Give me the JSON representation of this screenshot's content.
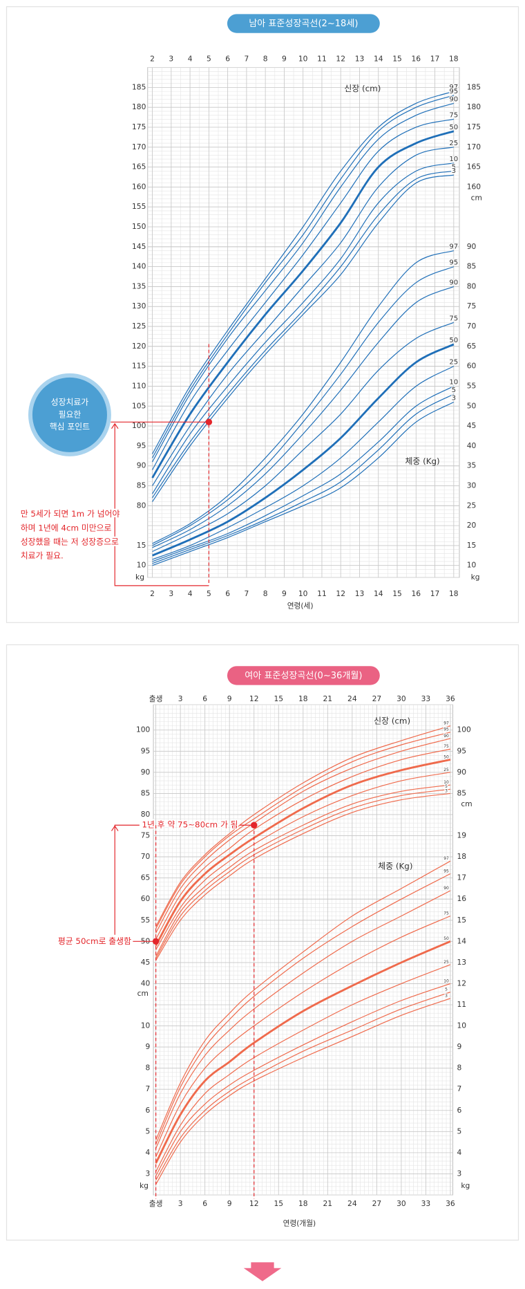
{
  "chart_data": [
    {
      "type": "line",
      "title": "남아 표준성장곡선(2~18세)",
      "x_label": "연령(세)",
      "height_label": "신장 (cm)",
      "weight_label": "체중 (Kg)",
      "y_unit": "cm",
      "y2_unit": "kg",
      "color": "#1f6fb8",
      "grid": true,
      "xlim": [
        1.75,
        18.3
      ],
      "xticks": [
        2,
        3,
        4,
        5,
        6,
        7,
        8,
        9,
        10,
        11,
        12,
        13,
        14,
        15,
        16,
        17,
        18
      ],
      "ylim": [
        62,
        190
      ],
      "yticks": [
        80,
        85,
        90,
        95,
        100,
        105,
        110,
        115,
        120,
        125,
        130,
        135,
        140,
        145,
        150,
        155,
        160,
        165,
        170,
        175,
        180,
        185
      ],
      "yticks_right": [
        160,
        165,
        170,
        175,
        180,
        185
      ],
      "y2lim": [
        7,
        135
      ],
      "y2ticks": [
        10,
        15,
        20,
        25,
        30,
        35,
        40,
        45,
        50,
        55,
        60,
        65,
        70,
        75,
        80,
        85,
        90
      ],
      "y2ticks_left": [
        10,
        15
      ],
      "x": [
        2,
        4,
        6,
        8,
        10,
        12,
        14,
        16,
        18
      ],
      "series": [
        {
          "name": "97",
          "values": [
            93,
            110,
            124,
            137,
            150,
            164,
            175,
            181,
            184
          ]
        },
        {
          "name": "95",
          "values": [
            92,
            109,
            123,
            136,
            148,
            162,
            174,
            180,
            183
          ]
        },
        {
          "name": "90",
          "values": [
            91,
            108,
            122,
            134,
            146,
            160,
            172,
            178,
            181
          ]
        },
        {
          "name": "75",
          "values": [
            89,
            106,
            119,
            131,
            143,
            156,
            169,
            175,
            177
          ]
        },
        {
          "name": "50",
          "bold": true,
          "values": [
            87,
            103,
            116,
            128,
            139,
            151,
            165,
            171,
            174
          ]
        },
        {
          "name": "25",
          "values": [
            85,
            100,
            113,
            124,
            135,
            146,
            160,
            168,
            170
          ]
        },
        {
          "name": "10",
          "values": [
            83,
            98,
            110,
            121,
            131,
            142,
            156,
            164,
            166
          ]
        },
        {
          "name": "5",
          "values": [
            82,
            96,
            108,
            119,
            129,
            140,
            153,
            162,
            164
          ]
        },
        {
          "name": "3",
          "values": [
            81,
            95,
            107,
            118,
            128,
            138,
            151,
            161,
            163
          ]
        },
        {
          "name": "97",
          "axis": "y2",
          "values": [
            15.5,
            20.5,
            27.5,
            37,
            48,
            61,
            75,
            86,
            89
          ]
        },
        {
          "name": "95",
          "axis": "y2",
          "values": [
            15,
            20,
            26.5,
            35,
            46,
            58,
            71,
            81,
            85
          ]
        },
        {
          "name": "90",
          "axis": "y2",
          "values": [
            14.5,
            19,
            25,
            33,
            43,
            54,
            66,
            76,
            80
          ]
        },
        {
          "name": "75",
          "axis": "y2",
          "values": [
            13.5,
            18,
            23,
            30,
            39,
            48,
            59,
            67,
            71
          ]
        },
        {
          "name": "50",
          "axis": "y2",
          "bold": true,
          "values": [
            12.5,
            16.5,
            21,
            27,
            34,
            42,
            52,
            61,
            65.5
          ]
        },
        {
          "name": "25",
          "axis": "y2",
          "values": [
            11.5,
            15,
            19.5,
            24.5,
            30,
            37,
            46,
            55,
            60
          ]
        },
        {
          "name": "10",
          "axis": "y2",
          "values": [
            11,
            14.5,
            18,
            22.5,
            27.5,
            33,
            41,
            50,
            55
          ]
        },
        {
          "name": "5",
          "axis": "y2",
          "values": [
            10.5,
            14,
            17.5,
            21.5,
            26,
            31,
            39,
            48,
            53
          ]
        },
        {
          "name": "3",
          "axis": "y2",
          "values": [
            10,
            13.5,
            17,
            21,
            25,
            29.5,
            37,
            46,
            51
          ]
        }
      ],
      "markers": [
        {
          "x": 5,
          "y": 101
        }
      ],
      "callout": [
        "성장치료가",
        "필요한",
        "핵심 포인트"
      ],
      "note": [
        "만 5세가 되면 1m 가 넘어야",
        "하며 1년에 4cm 미만으로",
        "성장했을 때는 저 성장증으로",
        "치료가 필요."
      ]
    },
    {
      "type": "line",
      "title": "여아 표준성장곡선(0~36개월)",
      "x_label": "연령(개월)",
      "height_label": "신장 (cm)",
      "weight_label": "체중 (Kg)",
      "y_unit": "cm",
      "y2_unit": "kg",
      "color": "#ef6a4c",
      "grid": true,
      "xlim": [
        -0.3,
        36.3
      ],
      "xticks": [
        {
          "value": 0,
          "label": "출생"
        },
        3,
        6,
        9,
        12,
        15,
        18,
        21,
        24,
        27,
        30,
        33,
        36
      ],
      "ylim": [
        -10,
        106
      ],
      "yticks": [
        40,
        45,
        50,
        55,
        60,
        65,
        70,
        75,
        80,
        85,
        90,
        95,
        100
      ],
      "yticks_right": [
        85,
        90,
        95,
        100
      ],
      "y2lim": [
        2,
        25.2
      ],
      "y2ticks": [
        3,
        4,
        5,
        6,
        7,
        8,
        9,
        10,
        11,
        12,
        13,
        14,
        15,
        16,
        17,
        18,
        19
      ],
      "y2ticks_left": [
        3,
        4,
        5,
        6,
        7,
        8,
        9,
        10
      ],
      "x": [
        0,
        3,
        6,
        9,
        12,
        18,
        24,
        30,
        36
      ],
      "series": [
        {
          "name": "97",
          "values": [
            53.5,
            64,
            70.5,
            75.5,
            80,
            87.5,
            93.5,
            97.5,
            101
          ]
        },
        {
          "name": "95",
          "values": [
            53,
            63.5,
            70,
            75,
            79,
            86.5,
            92.5,
            96.5,
            99.5
          ]
        },
        {
          "name": "90",
          "values": [
            52,
            62.5,
            69,
            74,
            78,
            85.5,
            91,
            95,
            98
          ]
        },
        {
          "name": "75",
          "values": [
            50.5,
            61,
            67.5,
            72,
            76.5,
            83.5,
            89,
            93,
            95.5
          ]
        },
        {
          "name": "50",
          "bold": true,
          "values": [
            49,
            59.5,
            66,
            70.5,
            74.5,
            81.5,
            87,
            90.5,
            93
          ]
        },
        {
          "name": "25",
          "values": [
            48,
            58,
            64.5,
            69,
            73,
            79.5,
            84.5,
            88,
            90
          ]
        },
        {
          "name": "10",
          "values": [
            46.5,
            57,
            63,
            67.5,
            71.5,
            77.5,
            82.5,
            85.5,
            87
          ]
        },
        {
          "name": "5",
          "values": [
            46,
            56,
            62,
            66.5,
            70.5,
            76.5,
            81.5,
            84.5,
            86
          ]
        },
        {
          "name": "3",
          "values": [
            45.5,
            55,
            61,
            65.5,
            69.5,
            75.5,
            80.5,
            83.5,
            85
          ]
        },
        {
          "name": "97",
          "axis": "y2",
          "values": [
            4.6,
            7.3,
            9.3,
            10.6,
            11.7,
            13.5,
            15.2,
            16.5,
            17.8
          ]
        },
        {
          "name": "95",
          "axis": "y2",
          "values": [
            4.4,
            7.1,
            9.0,
            10.3,
            11.4,
            13.2,
            14.7,
            16.0,
            17.2
          ]
        },
        {
          "name": "90",
          "axis": "y2",
          "values": [
            4.2,
            6.8,
            8.6,
            9.8,
            10.8,
            12.5,
            14.0,
            15.2,
            16.4
          ]
        },
        {
          "name": "75",
          "axis": "y2",
          "values": [
            3.8,
            6.3,
            8.0,
            9.1,
            10.0,
            11.6,
            13.0,
            14.2,
            15.2
          ]
        },
        {
          "name": "50",
          "axis": "y2",
          "bold": true,
          "values": [
            3.5,
            5.8,
            7.4,
            8.3,
            9.2,
            10.7,
            11.9,
            13.0,
            14.0
          ]
        },
        {
          "name": "25",
          "axis": "y2",
          "values": [
            3.1,
            5.3,
            6.8,
            7.7,
            8.5,
            9.8,
            11.0,
            12.0,
            12.9
          ]
        },
        {
          "name": "10",
          "axis": "y2",
          "values": [
            2.9,
            5.0,
            6.3,
            7.2,
            7.9,
            9.1,
            10.2,
            11.2,
            12.0
          ]
        },
        {
          "name": "5",
          "axis": "y2",
          "values": [
            2.7,
            4.7,
            6.0,
            6.9,
            7.6,
            8.8,
            9.8,
            10.8,
            11.6
          ]
        },
        {
          "name": "3",
          "axis": "y2",
          "values": [
            2.5,
            4.5,
            5.8,
            6.7,
            7.4,
            8.5,
            9.5,
            10.5,
            11.3
          ]
        }
      ],
      "markers": [
        {
          "x": 0,
          "y": 50,
          "label": "평균 50cm로 출생함"
        },
        {
          "x": 12,
          "y": 77.5,
          "label": "1년 후 약 75~80cm 가 됨"
        }
      ]
    }
  ]
}
